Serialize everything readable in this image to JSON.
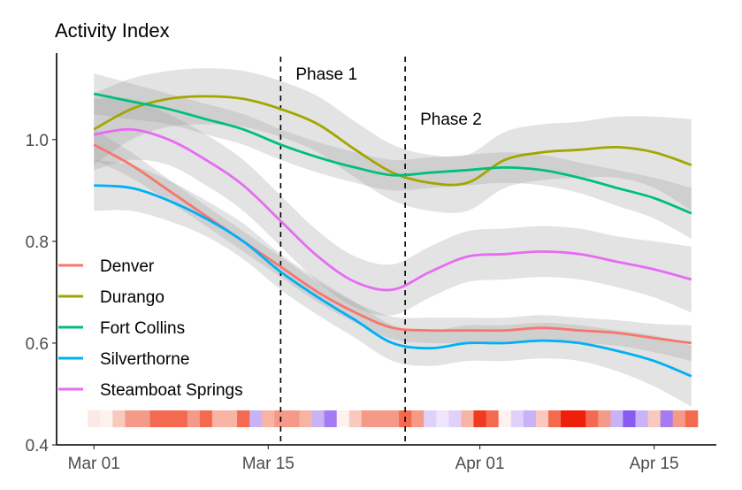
{
  "chart_data": {
    "type": "line",
    "title": "Activity Index",
    "xlabel": "",
    "ylabel": "",
    "x_domain_days": [
      -3,
      50
    ],
    "ylim": [
      0.4,
      1.17
    ],
    "y_ticks": [
      {
        "value": 0.4,
        "label": "0.4"
      },
      {
        "value": 0.6,
        "label": "0.6"
      },
      {
        "value": 0.8,
        "label": "0.8"
      },
      {
        "value": 1.0,
        "label": "1.0"
      }
    ],
    "x_ticks": [
      {
        "day": 0,
        "label": "Mar 01"
      },
      {
        "day": 14,
        "label": "Mar 15"
      },
      {
        "day": 31,
        "label": "Apr 01"
      },
      {
        "day": 45,
        "label": "Apr 15"
      }
    ],
    "x_day_labels": "days since Mar 01",
    "phases": [
      {
        "label": "Phase 1",
        "day": 15
      },
      {
        "label": "Phase 2",
        "day": 25
      }
    ],
    "series": [
      {
        "name": "Denver",
        "color": "#F8766D",
        "x": [
          0,
          3,
          6,
          9,
          12,
          15,
          18,
          21,
          24,
          27,
          30,
          33,
          36,
          39,
          42,
          45,
          48
        ],
        "y": [
          0.99,
          0.95,
          0.9,
          0.85,
          0.8,
          0.75,
          0.7,
          0.66,
          0.63,
          0.625,
          0.625,
          0.625,
          0.63,
          0.625,
          0.62,
          0.61,
          0.6
        ],
        "band": [
          0.03,
          0.025,
          0.022,
          0.02,
          0.02,
          0.02,
          0.02,
          0.02,
          0.022,
          0.025,
          0.025,
          0.025,
          0.025,
          0.025,
          0.025,
          0.028,
          0.035
        ]
      },
      {
        "name": "Durango",
        "color": "#A3A500",
        "x": [
          0,
          3,
          6,
          9,
          12,
          15,
          18,
          21,
          24,
          27,
          30,
          33,
          36,
          39,
          42,
          45,
          48
        ],
        "y": [
          1.02,
          1.06,
          1.08,
          1.085,
          1.08,
          1.06,
          1.03,
          0.98,
          0.935,
          0.915,
          0.915,
          0.96,
          0.975,
          0.98,
          0.985,
          0.975,
          0.95
        ],
        "band": [
          0.07,
          0.06,
          0.055,
          0.055,
          0.055,
          0.055,
          0.055,
          0.055,
          0.055,
          0.055,
          0.055,
          0.055,
          0.055,
          0.055,
          0.06,
          0.07,
          0.09
        ]
      },
      {
        "name": "Fort Collins",
        "color": "#00BF7D",
        "x": [
          0,
          3,
          6,
          9,
          12,
          15,
          18,
          21,
          24,
          27,
          30,
          33,
          36,
          39,
          42,
          45,
          48
        ],
        "y": [
          1.09,
          1.075,
          1.06,
          1.04,
          1.02,
          0.99,
          0.965,
          0.945,
          0.93,
          0.935,
          0.94,
          0.945,
          0.94,
          0.925,
          0.905,
          0.885,
          0.855
        ],
        "band": [
          0.04,
          0.035,
          0.03,
          0.03,
          0.03,
          0.03,
          0.03,
          0.03,
          0.03,
          0.03,
          0.03,
          0.03,
          0.03,
          0.03,
          0.035,
          0.04,
          0.05
        ]
      },
      {
        "name": "Silverthorne",
        "color": "#00B0F6",
        "x": [
          0,
          3,
          6,
          9,
          12,
          15,
          18,
          21,
          24,
          27,
          30,
          33,
          36,
          39,
          42,
          45,
          48
        ],
        "y": [
          0.91,
          0.905,
          0.88,
          0.845,
          0.8,
          0.74,
          0.69,
          0.645,
          0.6,
          0.59,
          0.6,
          0.6,
          0.605,
          0.6,
          0.585,
          0.565,
          0.535
        ],
        "band": [
          0.05,
          0.045,
          0.04,
          0.035,
          0.035,
          0.035,
          0.035,
          0.035,
          0.035,
          0.035,
          0.035,
          0.035,
          0.035,
          0.035,
          0.04,
          0.05,
          0.06
        ]
      },
      {
        "name": "Steamboat Springs",
        "color": "#E76BF3",
        "x": [
          0,
          3,
          6,
          9,
          12,
          15,
          18,
          21,
          24,
          27,
          30,
          33,
          36,
          39,
          42,
          45,
          48
        ],
        "y": [
          1.01,
          1.02,
          1.0,
          0.96,
          0.91,
          0.84,
          0.77,
          0.72,
          0.705,
          0.74,
          0.77,
          0.775,
          0.78,
          0.775,
          0.76,
          0.745,
          0.725
        ],
        "band": [
          0.07,
          0.06,
          0.05,
          0.05,
          0.05,
          0.05,
          0.05,
          0.05,
          0.05,
          0.05,
          0.05,
          0.05,
          0.05,
          0.05,
          0.05,
          0.055,
          0.065
        ]
      }
    ],
    "heat_strip": {
      "start_day": 0,
      "colors": [
        "#fce8e4",
        "#fdf2f0",
        "#f9c9be",
        "#f59a88",
        "#f59a88",
        "#f46a50",
        "#f46a50",
        "#f46a50",
        "#f59a88",
        "#f46a50",
        "#f7b4a5",
        "#f7b4a5",
        "#f46a50",
        "#c7b3f5",
        "#f7b4a5",
        "#f59a88",
        "#f59a88",
        "#f7b4a5",
        "#c7b3f5",
        "#a47bf1",
        "#fdf2f0",
        "#f9c9be",
        "#f59a88",
        "#f59a88",
        "#f59a88",
        "#f46a50",
        "#f59a88",
        "#dfd1fa",
        "#eee6fc",
        "#dfd1fa",
        "#f7b4a5",
        "#f03a22",
        "#f46a50",
        "#fdf2f0",
        "#dfd1fa",
        "#c7b3f5",
        "#f9c9be",
        "#f46a50",
        "#ee1f0b",
        "#ee1f0b",
        "#f46a50",
        "#f59a88",
        "#c7b3f5",
        "#8a5bf0",
        "#c7b3f5",
        "#f9c9be",
        "#a47bf1",
        "#f59a88",
        "#f46a50"
      ]
    },
    "legend": {
      "position": "bottom-left"
    }
  }
}
